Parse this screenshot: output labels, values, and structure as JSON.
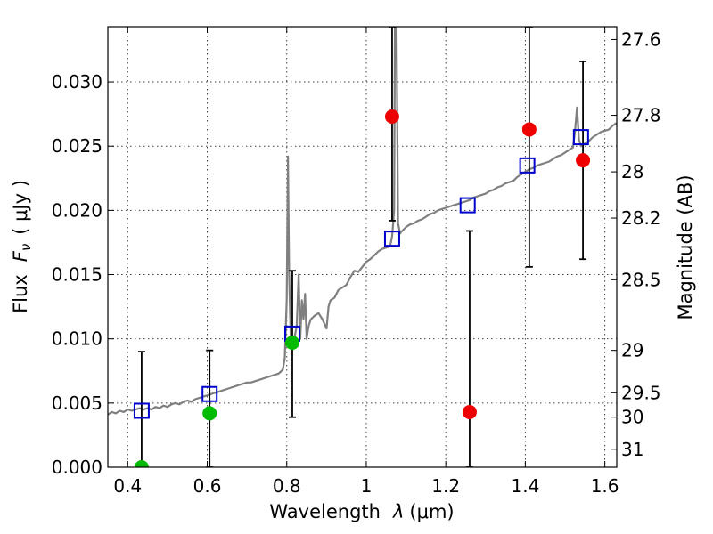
{
  "chart_data": {
    "type": "scatter",
    "xlabel_text": "Wavelength",
    "xlabel_symbol": "λ",
    "xlabel_unit": "(μm)",
    "ylabel_text": "Flux",
    "ylabel_symbol": "F",
    "ylabel_subscript": "ν",
    "ylabel_unit": "( μJy )",
    "y2label": "Magnitude (AB)",
    "xlim": [
      0.35,
      1.63
    ],
    "ylim": [
      0.0,
      0.0343
    ],
    "grid": true,
    "x_ticks": [
      {
        "value": 0.4,
        "label": "0.4"
      },
      {
        "value": 0.6,
        "label": "0.6"
      },
      {
        "value": 0.8,
        "label": "0.8"
      },
      {
        "value": 1.0,
        "label": "1"
      },
      {
        "value": 1.2,
        "label": "1.2"
      },
      {
        "value": 1.4,
        "label": "1.4"
      },
      {
        "value": 1.6,
        "label": "1.6"
      }
    ],
    "y_ticks": [
      {
        "value": 0.0,
        "label": "0.000"
      },
      {
        "value": 0.005,
        "label": "0.005"
      },
      {
        "value": 0.01,
        "label": "0.010"
      },
      {
        "value": 0.015,
        "label": "0.015"
      },
      {
        "value": 0.02,
        "label": "0.020"
      },
      {
        "value": 0.025,
        "label": "0.025"
      },
      {
        "value": 0.03,
        "label": "0.030"
      }
    ],
    "y2_ticks": [
      {
        "flux": 0.0333,
        "label": "27.6"
      },
      {
        "flux": 0.0274,
        "label": "27.8"
      },
      {
        "flux": 0.023,
        "label": "28"
      },
      {
        "flux": 0.0194,
        "label": "28.2"
      },
      {
        "flux": 0.0146,
        "label": "28.5"
      },
      {
        "flux": 0.0091,
        "label": "29"
      },
      {
        "flux": 0.0058,
        "label": "29.5"
      },
      {
        "flux": 0.0039,
        "label": "30"
      },
      {
        "flux": 0.0014,
        "label": "31"
      }
    ],
    "model_spectrum": {
      "color": "#808080",
      "points": [
        [
          0.35,
          0.0041
        ],
        [
          0.36,
          0.0043
        ],
        [
          0.37,
          0.0042
        ],
        [
          0.38,
          0.0044
        ],
        [
          0.39,
          0.0043
        ],
        [
          0.4,
          0.0045
        ],
        [
          0.41,
          0.0044
        ],
        [
          0.42,
          0.0045
        ],
        [
          0.43,
          0.0046
        ],
        [
          0.44,
          0.0045
        ],
        [
          0.45,
          0.0046
        ],
        [
          0.46,
          0.0045
        ],
        [
          0.47,
          0.0047
        ],
        [
          0.48,
          0.0046
        ],
        [
          0.49,
          0.0048
        ],
        [
          0.5,
          0.0047
        ],
        [
          0.51,
          0.0049
        ],
        [
          0.52,
          0.005
        ],
        [
          0.53,
          0.0049
        ],
        [
          0.54,
          0.0051
        ],
        [
          0.55,
          0.0052
        ],
        [
          0.56,
          0.0051
        ],
        [
          0.57,
          0.0053
        ],
        [
          0.58,
          0.0054
        ],
        [
          0.59,
          0.0055
        ],
        [
          0.6,
          0.0056
        ],
        [
          0.61,
          0.0057
        ],
        [
          0.62,
          0.0058
        ],
        [
          0.63,
          0.0059
        ],
        [
          0.64,
          0.006
        ],
        [
          0.65,
          0.0061
        ],
        [
          0.66,
          0.0062
        ],
        [
          0.67,
          0.0063
        ],
        [
          0.68,
          0.0064
        ],
        [
          0.69,
          0.0065
        ],
        [
          0.7,
          0.0066
        ],
        [
          0.71,
          0.0066
        ],
        [
          0.72,
          0.0067
        ],
        [
          0.73,
          0.0068
        ],
        [
          0.74,
          0.0069
        ],
        [
          0.75,
          0.007
        ],
        [
          0.76,
          0.0071
        ],
        [
          0.77,
          0.0072
        ],
        [
          0.78,
          0.0073
        ],
        [
          0.79,
          0.0076
        ],
        [
          0.795,
          0.0085
        ],
        [
          0.8,
          0.013
        ],
        [
          0.803,
          0.0242
        ],
        [
          0.806,
          0.015
        ],
        [
          0.81,
          0.01
        ],
        [
          0.815,
          0.0096
        ],
        [
          0.82,
          0.0102
        ],
        [
          0.825,
          0.011
        ],
        [
          0.83,
          0.015
        ],
        [
          0.834,
          0.01
        ],
        [
          0.838,
          0.013
        ],
        [
          0.842,
          0.0115
        ],
        [
          0.846,
          0.0135
        ],
        [
          0.85,
          0.01
        ],
        [
          0.855,
          0.011
        ],
        [
          0.86,
          0.0115
        ],
        [
          0.87,
          0.0118
        ],
        [
          0.88,
          0.012
        ],
        [
          0.89,
          0.0115
        ],
        [
          0.9,
          0.0108
        ],
        [
          0.905,
          0.0125
        ],
        [
          0.91,
          0.013
        ],
        [
          0.92,
          0.0132
        ],
        [
          0.93,
          0.0138
        ],
        [
          0.94,
          0.014
        ],
        [
          0.95,
          0.0142
        ],
        [
          0.96,
          0.0148
        ],
        [
          0.97,
          0.0153
        ],
        [
          0.98,
          0.0152
        ],
        [
          0.99,
          0.0156
        ],
        [
          1.0,
          0.016
        ],
        [
          1.01,
          0.0162
        ],
        [
          1.02,
          0.0165
        ],
        [
          1.03,
          0.0168
        ],
        [
          1.04,
          0.017
        ],
        [
          1.05,
          0.0171
        ],
        [
          1.06,
          0.0172
        ],
        [
          1.065,
          0.018
        ],
        [
          1.07,
          0.02
        ],
        [
          1.072,
          0.0343
        ],
        [
          1.076,
          0.0343
        ],
        [
          1.08,
          0.019
        ],
        [
          1.085,
          0.0182
        ],
        [
          1.09,
          0.0184
        ],
        [
          1.1,
          0.0187
        ],
        [
          1.11,
          0.0189
        ],
        [
          1.12,
          0.019
        ],
        [
          1.13,
          0.0192
        ],
        [
          1.14,
          0.0193
        ],
        [
          1.15,
          0.0195
        ],
        [
          1.16,
          0.0197
        ],
        [
          1.17,
          0.0198
        ],
        [
          1.18,
          0.02
        ],
        [
          1.19,
          0.0201
        ],
        [
          1.2,
          0.0202
        ],
        [
          1.21,
          0.0203
        ],
        [
          1.22,
          0.0204
        ],
        [
          1.23,
          0.0205
        ],
        [
          1.24,
          0.0206
        ],
        [
          1.25,
          0.0207
        ],
        [
          1.26,
          0.0208
        ],
        [
          1.27,
          0.021
        ],
        [
          1.28,
          0.0211
        ],
        [
          1.29,
          0.0212
        ],
        [
          1.3,
          0.0213
        ],
        [
          1.31,
          0.0215
        ],
        [
          1.32,
          0.0216
        ],
        [
          1.33,
          0.0218
        ],
        [
          1.34,
          0.0219
        ],
        [
          1.35,
          0.0221
        ],
        [
          1.36,
          0.0222
        ],
        [
          1.37,
          0.0223
        ],
        [
          1.38,
          0.0226
        ],
        [
          1.39,
          0.0228
        ],
        [
          1.4,
          0.023
        ],
        [
          1.41,
          0.0232
        ],
        [
          1.42,
          0.0233
        ],
        [
          1.43,
          0.0235
        ],
        [
          1.44,
          0.0236
        ],
        [
          1.45,
          0.0237
        ],
        [
          1.46,
          0.0238
        ],
        [
          1.47,
          0.024
        ],
        [
          1.48,
          0.0242
        ],
        [
          1.49,
          0.0243
        ],
        [
          1.5,
          0.0245
        ],
        [
          1.51,
          0.0247
        ],
        [
          1.52,
          0.0249
        ],
        [
          1.525,
          0.0262
        ],
        [
          1.53,
          0.028
        ],
        [
          1.535,
          0.0255
        ],
        [
          1.54,
          0.025
        ],
        [
          1.55,
          0.0252
        ],
        [
          1.56,
          0.0254
        ],
        [
          1.57,
          0.0257
        ],
        [
          1.58,
          0.0259
        ],
        [
          1.59,
          0.0261
        ],
        [
          1.6,
          0.0262
        ],
        [
          1.61,
          0.0263
        ],
        [
          1.62,
          0.0266
        ],
        [
          1.63,
          0.0268
        ]
      ]
    },
    "model_photometry": {
      "color": "#0000cc",
      "points": [
        [
          0.435,
          0.0044
        ],
        [
          0.606,
          0.0057
        ],
        [
          0.814,
          0.0104
        ],
        [
          1.065,
          0.0178
        ],
        [
          1.255,
          0.0204
        ],
        [
          1.405,
          0.0235
        ],
        [
          1.54,
          0.0257
        ]
      ]
    },
    "detections": {
      "color": "#00bb00",
      "points": [
        {
          "x": 0.435,
          "y": 0.0,
          "yerr_low": 0.0,
          "yerr_high": 0.009
        },
        {
          "x": 0.606,
          "y": 0.0042,
          "yerr_low": 0.0,
          "yerr_high": 0.0091
        },
        {
          "x": 0.814,
          "y": 0.0097,
          "yerr_low": 0.0039,
          "yerr_high": 0.0153
        }
      ]
    },
    "nondetections": {
      "color": "#ee0000",
      "points": [
        {
          "x": 1.065,
          "y": 0.0273,
          "yerr_low": 0.0192,
          "yerr_high": 0.0343
        },
        {
          "x": 1.26,
          "y": 0.0043,
          "yerr_low": 0.0,
          "yerr_high": 0.0184
        },
        {
          "x": 1.41,
          "y": 0.0263,
          "yerr_low": 0.0156,
          "yerr_high": 0.0343
        },
        {
          "x": 1.545,
          "y": 0.0239,
          "yerr_low": 0.0162,
          "yerr_high": 0.0316
        }
      ]
    }
  }
}
